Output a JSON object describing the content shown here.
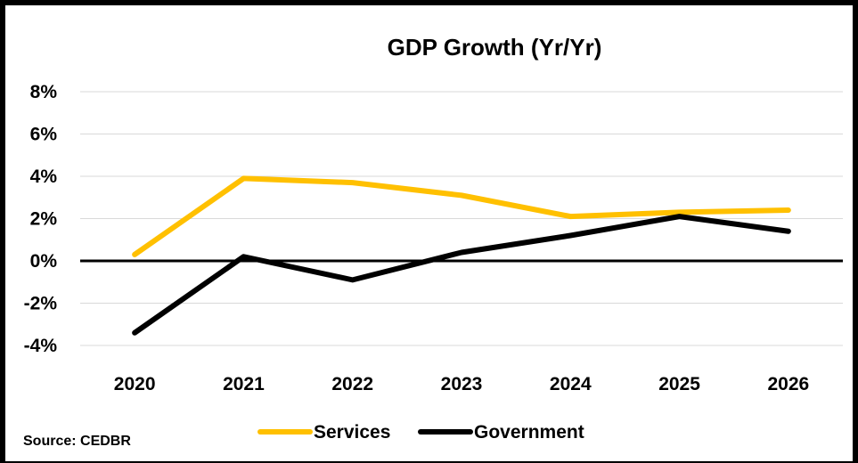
{
  "chart_data": {
    "type": "line",
    "title": "GDP Growth (Yr/Yr)",
    "xlabel": "",
    "ylabel": "",
    "categories": [
      "2020",
      "2021",
      "2022",
      "2023",
      "2024",
      "2025",
      "2026"
    ],
    "y_ticks": [
      "8%",
      "6%",
      "4%",
      "2%",
      "0%",
      "-2%",
      "-4%"
    ],
    "ylim": [
      -4,
      8
    ],
    "grid": true,
    "legend_position": "bottom",
    "series": [
      {
        "name": "Services",
        "color": "#FFC000",
        "values": [
          0.3,
          3.9,
          3.7,
          3.1,
          2.1,
          2.3,
          2.4
        ]
      },
      {
        "name": "Government",
        "color": "#000000",
        "values": [
          -3.4,
          0.2,
          -0.9,
          0.4,
          1.2,
          2.1,
          1.4
        ]
      }
    ]
  },
  "source": "Source: CEDBR"
}
